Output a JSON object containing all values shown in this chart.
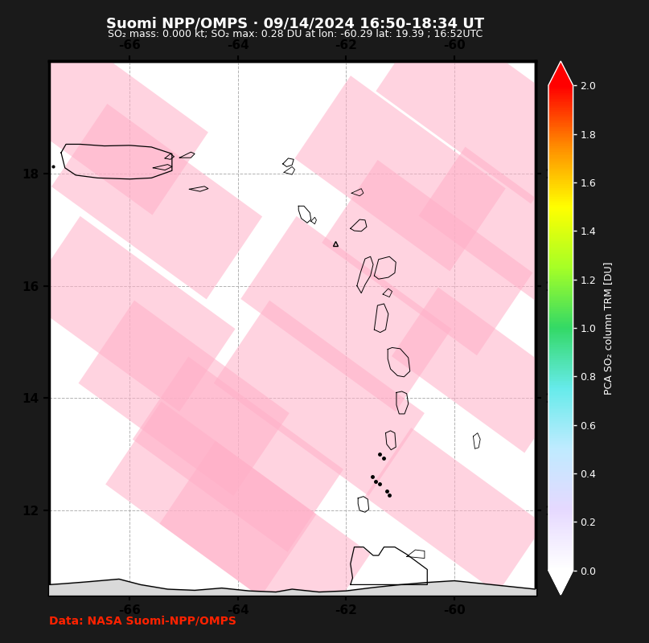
{
  "title": "Suomi NPP/OMPS · 09/14/2024 16:50-18:34 UT",
  "subtitle": "SO₂ mass: 0.000 kt; SO₂ max: 0.28 DU at lon: -60.29 lat: 19.39 ; 16:52UTC",
  "data_credit": "Data: NASA Suomi-NPP/OMPS",
  "data_credit_color": "#ff2200",
  "lon_min": -67.5,
  "lon_max": -58.5,
  "lat_min": 10.5,
  "lat_max": 20.0,
  "x_ticks": [
    -66,
    -64,
    -62,
    -60
  ],
  "y_ticks": [
    12,
    14,
    16,
    18
  ],
  "cbar_label": "PCA SO₂ column TRM [DU]",
  "cbar_vmin": 0.0,
  "cbar_vmax": 2.0,
  "cbar_ticks": [
    0.0,
    0.2,
    0.4,
    0.6,
    0.8,
    1.0,
    1.2,
    1.4,
    1.6,
    1.8,
    2.0
  ],
  "map_bg_color": "#ffffff",
  "fig_bg_color": "#1a1a1a",
  "title_fontsize": 13,
  "subtitle_fontsize": 9,
  "so2_lon": -60.29,
  "so2_lat": 19.39,
  "so2_value": 0.28,
  "strip_color": "#ffb0c8",
  "strip_alpha": 0.55,
  "coast_color": "#000000",
  "grid_color": "#aaaaaa",
  "frame_color": "#000000",
  "tick_color": "#000000",
  "tick_label_color": "#000000"
}
